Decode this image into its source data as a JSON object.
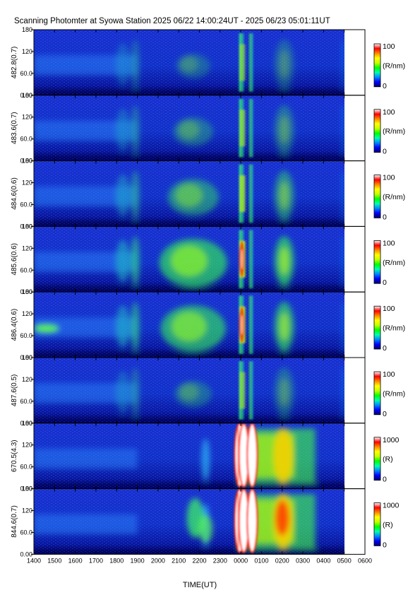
{
  "title": "Scanning Photomter at Syowa Station 2025 06/22 14:00:24UT - 2025 06/23 05:01:11UT",
  "chart_data": {
    "type": "heatmap",
    "xlabel": "TIME(UT)",
    "x_ticks": [
      "1400",
      "1500",
      "1600",
      "1700",
      "1800",
      "1900",
      "2000",
      "2100",
      "2200",
      "2300",
      "0000",
      "0100",
      "0200",
      "0300",
      "0400",
      "0500",
      "0600"
    ],
    "y_ticks": [
      "0.00",
      "60.0",
      "120",
      "180"
    ],
    "ylim": [
      0,
      180
    ],
    "panels": [
      {
        "ylabel": "482.8(0.7)",
        "unit": "(R/nm)",
        "cbar_min": "0",
        "cbar_max": "100",
        "kind": "nm"
      },
      {
        "ylabel": "483.6(0.7)",
        "unit": "(R/nm)",
        "cbar_min": "0",
        "cbar_max": "100",
        "kind": "nm"
      },
      {
        "ylabel": "484.6(0.6)",
        "unit": "(R/nm)",
        "cbar_min": "0",
        "cbar_max": "100",
        "kind": "nm"
      },
      {
        "ylabel": "485.6(0.6)",
        "unit": "(R/nm)",
        "cbar_min": "0",
        "cbar_max": "100",
        "kind": "nm"
      },
      {
        "ylabel": "486.4(0.6)",
        "unit": "(R/nm)",
        "cbar_min": "0",
        "cbar_max": "100",
        "kind": "nm"
      },
      {
        "ylabel": "487.6(0.5)",
        "unit": "(R/nm)",
        "cbar_min": "0",
        "cbar_max": "100",
        "kind": "nm"
      },
      {
        "ylabel": "670.5(4.3)",
        "unit": "(R)",
        "cbar_min": "0",
        "cbar_max": "1000",
        "kind": "R"
      },
      {
        "ylabel": "844.6(0.7)",
        "unit": "(R)",
        "cbar_min": "0",
        "cbar_max": "1000",
        "kind": "R"
      }
    ],
    "colormap": [
      "#00006e",
      "#0000ff",
      "#0088ff",
      "#00ffb0",
      "#00ff00",
      "#c8ff00",
      "#ffff00",
      "#ff8800",
      "#ff0000",
      "#ffffff"
    ]
  }
}
